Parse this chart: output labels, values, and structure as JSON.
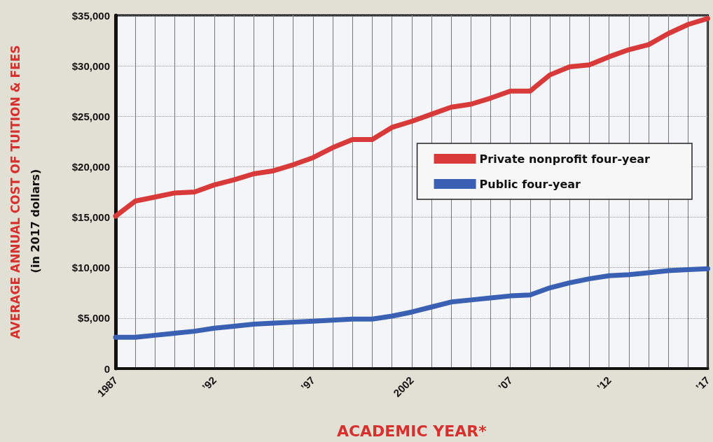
{
  "chart_data": {
    "type": "line",
    "xlabel": "ACADEMIC YEAR*",
    "ylabel": "AVERAGE ANNUAL COST OF TUITION & FEES",
    "annotations": [
      "(in 2017 dollars)"
    ],
    "x": [
      1987,
      1988,
      1989,
      1990,
      1991,
      1992,
      1993,
      1994,
      1995,
      1996,
      1997,
      1998,
      1999,
      2000,
      2001,
      2002,
      2003,
      2004,
      2005,
      2006,
      2007,
      2008,
      2009,
      2010,
      2011,
      2012,
      2013,
      2014,
      2015,
      2016,
      2017
    ],
    "series": [
      {
        "name": "Private nonprofit four-year",
        "color": "#d83a3a",
        "values": [
          15100,
          16600,
          17000,
          17400,
          17500,
          18200,
          18700,
          19300,
          19600,
          20200,
          20900,
          21900,
          22700,
          22700,
          23900,
          24500,
          25200,
          25900,
          26200,
          26800,
          27500,
          27500,
          29100,
          29900,
          30100,
          30900,
          31600,
          32100,
          33200,
          34100,
          34700
        ]
      },
      {
        "name": "Public four-year",
        "color": "#3a60b4",
        "values": [
          3100,
          3100,
          3300,
          3500,
          3700,
          4000,
          4200,
          4400,
          4500,
          4600,
          4700,
          4800,
          4900,
          4900,
          5200,
          5600,
          6100,
          6600,
          6800,
          7000,
          7200,
          7300,
          8000,
          8500,
          8900,
          9200,
          9300,
          9500,
          9700,
          9800,
          9900
        ]
      }
    ],
    "xlim": [
      1987,
      2017
    ],
    "xticks": [
      {
        "value": 1987,
        "label": "1987"
      },
      {
        "value": 1988,
        "label": null
      },
      {
        "value": 1989,
        "label": null
      },
      {
        "value": 1990,
        "label": null
      },
      {
        "value": 1991,
        "label": null
      },
      {
        "value": 1992,
        "label": "’92"
      },
      {
        "value": 1993,
        "label": null
      },
      {
        "value": 1994,
        "label": null
      },
      {
        "value": 1995,
        "label": null
      },
      {
        "value": 1996,
        "label": null
      },
      {
        "value": 1997,
        "label": "’97"
      },
      {
        "value": 1998,
        "label": null
      },
      {
        "value": 1999,
        "label": null
      },
      {
        "value": 2000,
        "label": null
      },
      {
        "value": 2001,
        "label": null
      },
      {
        "value": 2002,
        "label": "2002"
      },
      {
        "value": 2003,
        "label": null
      },
      {
        "value": 2004,
        "label": null
      },
      {
        "value": 2005,
        "label": null
      },
      {
        "value": 2006,
        "label": null
      },
      {
        "value": 2007,
        "label": "’07"
      },
      {
        "value": 2008,
        "label": null
      },
      {
        "value": 2009,
        "label": null
      },
      {
        "value": 2010,
        "label": null
      },
      {
        "value": 2011,
        "label": null
      },
      {
        "value": 2012,
        "label": "’12"
      },
      {
        "value": 2013,
        "label": null
      },
      {
        "value": 2014,
        "label": null
      },
      {
        "value": 2015,
        "label": null
      },
      {
        "value": 2016,
        "label": null
      },
      {
        "value": 2017,
        "label": "’17"
      }
    ],
    "ylim": [
      0,
      35000
    ],
    "yticks": [
      {
        "value": 0,
        "label": "0"
      },
      {
        "value": 5000,
        "label": "$5,000"
      },
      {
        "value": 10000,
        "label": "$10,000"
      },
      {
        "value": 15000,
        "label": "$15,000"
      },
      {
        "value": 20000,
        "label": "$20,000"
      },
      {
        "value": 25000,
        "label": "$25,000"
      },
      {
        "value": 30000,
        "label": "$30,000"
      },
      {
        "value": 35000,
        "label": "$35,000"
      }
    ],
    "grid": true,
    "legend": "right",
    "marker": "none",
    "line_style": "solid"
  }
}
